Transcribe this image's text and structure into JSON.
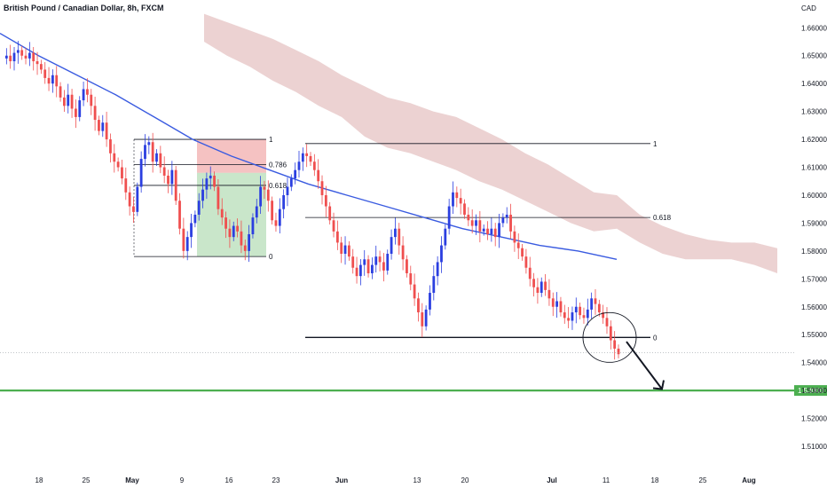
{
  "title": "British Pound / Canadian Dollar, 8h, FXCM",
  "currency": "CAD",
  "colors": {
    "up": "#2b3fe0",
    "down": "#ef4f4f",
    "ma": "#3a5be0",
    "cloud": "#d9a5a5",
    "target_line": "#4caf50",
    "box_top": "#ef9a9a",
    "box_bottom": "#a5d6a7",
    "fib": "#131722"
  },
  "chart_data": {
    "type": "candlestick",
    "title": "British Pound / Canadian Dollar, 8h, FXCM",
    "y_unit": "CAD",
    "ylim": [
      1.503,
      1.662
    ],
    "y_ticks": [
      "1.51000",
      "1.52000",
      "1.53000",
      "1.54000",
      "1.55000",
      "1.56000",
      "1.57000",
      "1.58000",
      "1.59000",
      "1.60000",
      "1.61000",
      "1.62000",
      "1.63000",
      "1.64000",
      "1.65000",
      "1.66000"
    ],
    "x_ticks": [
      {
        "label": "18",
        "bold": false
      },
      {
        "label": "25",
        "bold": false
      },
      {
        "label": "May",
        "bold": true
      },
      {
        "label": "9",
        "bold": false
      },
      {
        "label": "16",
        "bold": false
      },
      {
        "label": "23",
        "bold": false
      },
      {
        "label": "Jun",
        "bold": true
      },
      {
        "label": "13",
        "bold": false
      },
      {
        "label": "20",
        "bold": false
      },
      {
        "label": "Jul",
        "bold": true
      },
      {
        "label": "11",
        "bold": false
      },
      {
        "label": "18",
        "bold": false
      },
      {
        "label": "25",
        "bold": false
      },
      {
        "label": "Aug",
        "bold": true
      }
    ],
    "price_path": [
      1.649,
      1.65,
      1.648,
      1.651,
      1.652,
      1.65,
      1.649,
      1.651,
      1.648,
      1.647,
      1.645,
      1.642,
      1.64,
      1.643,
      1.639,
      1.635,
      1.632,
      1.636,
      1.631,
      1.628,
      1.634,
      1.638,
      1.636,
      1.632,
      1.627,
      1.623,
      1.626,
      1.62,
      1.615,
      1.612,
      1.61,
      1.606,
      1.601,
      1.596,
      1.594,
      1.603,
      1.613,
      1.618,
      1.619,
      1.612,
      1.615,
      1.61,
      1.607,
      1.604,
      1.609,
      1.598,
      1.588,
      1.58,
      1.585,
      1.59,
      1.593,
      1.598,
      1.602,
      1.606,
      1.607,
      1.603,
      1.595,
      1.592,
      1.588,
      1.585,
      1.589,
      1.587,
      1.582,
      1.58,
      1.586,
      1.592,
      1.596,
      1.603,
      1.602,
      1.598,
      1.591,
      1.589,
      1.595,
      1.6,
      1.603,
      1.606,
      1.609,
      1.612,
      1.615,
      1.614,
      1.612,
      1.609,
      1.605,
      1.6,
      1.596,
      1.591,
      1.587,
      1.583,
      1.579,
      1.582,
      1.578,
      1.574,
      1.571,
      1.575,
      1.577,
      1.572,
      1.575,
      1.578,
      1.576,
      1.573,
      1.579,
      1.585,
      1.588,
      1.582,
      1.577,
      1.572,
      1.568,
      1.563,
      1.558,
      1.553,
      1.559,
      1.565,
      1.571,
      1.576,
      1.582,
      1.588,
      1.596,
      1.601,
      1.599,
      1.597,
      1.593,
      1.591,
      1.589,
      1.591,
      1.587,
      1.588,
      1.586,
      1.588,
      1.585,
      1.59,
      1.592,
      1.593,
      1.587,
      1.583,
      1.581,
      1.578,
      1.574,
      1.57,
      1.567,
      1.565,
      1.569,
      1.566,
      1.563,
      1.56,
      1.562,
      1.558,
      1.556,
      1.555,
      1.558,
      1.56,
      1.557,
      1.556,
      1.559,
      1.563,
      1.561,
      1.558,
      1.556,
      1.553,
      1.548,
      1.545,
      1.543
    ],
    "moving_average": [
      1.658,
      1.65,
      1.643,
      1.636,
      1.628,
      1.62,
      1.614,
      1.609,
      1.604,
      1.6,
      1.596,
      1.592,
      1.588,
      1.585,
      1.582,
      1.58,
      1.577
    ],
    "cloud_top": [
      1.665,
      1.662,
      1.659,
      1.656,
      1.652,
      1.648,
      1.643,
      1.639,
      1.635,
      1.633,
      1.63,
      1.628,
      1.624,
      1.62,
      1.615,
      1.611,
      1.606,
      1.601,
      1.6,
      1.593,
      1.589,
      1.586,
      1.584,
      1.583,
      1.583,
      1.581
    ],
    "cloud_bottom": [
      1.655,
      1.65,
      1.646,
      1.641,
      1.637,
      1.632,
      1.628,
      1.621,
      1.617,
      1.615,
      1.612,
      1.609,
      1.605,
      1.602,
      1.598,
      1.594,
      1.59,
      1.587,
      1.588,
      1.583,
      1.579,
      1.577,
      1.577,
      1.577,
      1.575,
      1.572
    ],
    "fib_left": {
      "top": 1.62,
      "bottom": 1.578,
      "levels": [
        {
          "label": "1",
          "value": 1.62
        },
        {
          "label": "0.786",
          "value": 1.611
        },
        {
          "label": "0.618",
          "value": 1.6035
        },
        {
          "label": "0",
          "value": 1.578
        }
      ]
    },
    "fib_right": {
      "levels": [
        {
          "label": "1",
          "value": 1.6185
        },
        {
          "label": "0.618",
          "value": 1.592
        },
        {
          "label": "0",
          "value": 1.549
        }
      ]
    },
    "position_box": {
      "top": 1.62,
      "entry": 1.608,
      "bottom": 1.578
    },
    "target_line": {
      "value": 1.53,
      "label": "1.53000"
    },
    "last_price_line": 1.5435
  }
}
